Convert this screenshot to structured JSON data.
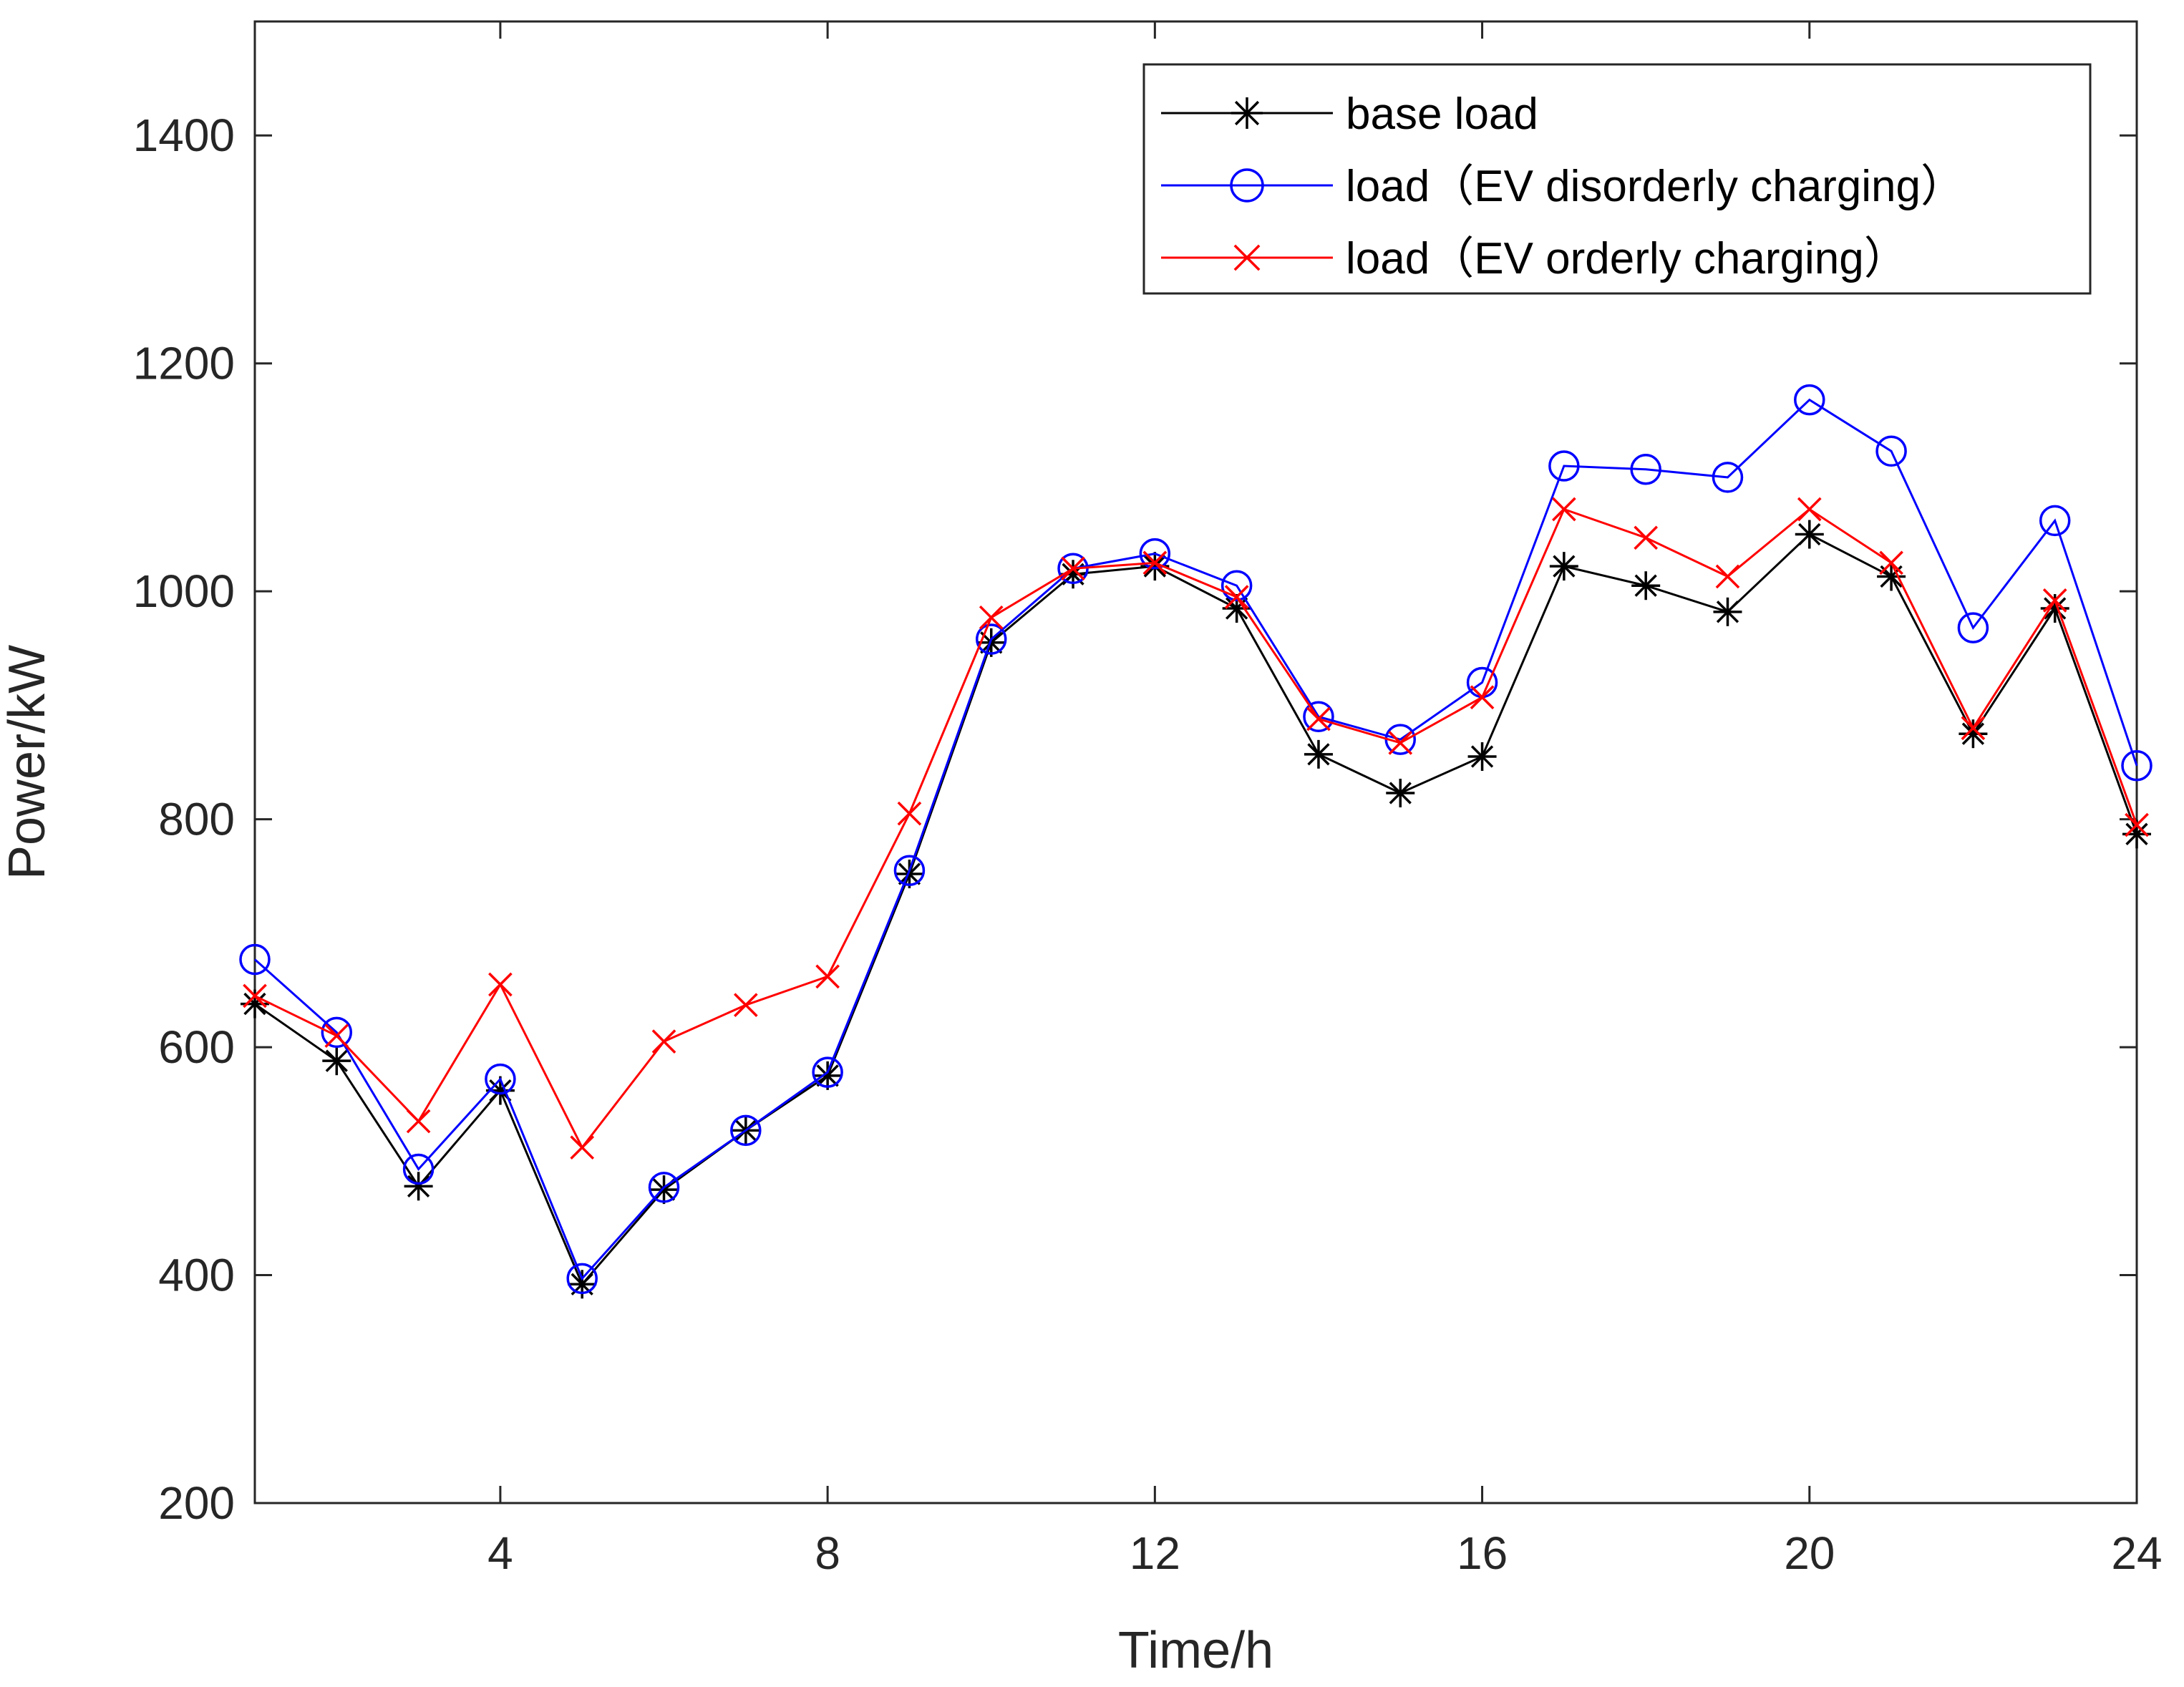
{
  "chart_data": {
    "type": "line",
    "title": "",
    "xlabel": "Time/h",
    "ylabel": "Power/kW",
    "xlim": [
      1,
      24
    ],
    "ylim": [
      200,
      1500
    ],
    "xticks": [
      4,
      8,
      12,
      16,
      20,
      24
    ],
    "yticks": [
      200,
      400,
      600,
      800,
      1000,
      1200,
      1400
    ],
    "grid": false,
    "legend_position": "top-right",
    "x": [
      1,
      2,
      3,
      4,
      5,
      6,
      7,
      8,
      9,
      10,
      11,
      12,
      13,
      14,
      15,
      16,
      17,
      18,
      19,
      20,
      21,
      22,
      23,
      24
    ],
    "series": [
      {
        "name": "base load",
        "color": "#000000",
        "marker": "asterisk",
        "values": [
          638,
          588,
          478,
          562,
          392,
          475,
          527,
          575,
          752,
          955,
          1015,
          1022,
          985,
          857,
          823,
          855,
          1022,
          1005,
          982,
          1050,
          1013,
          875,
          985,
          787
        ]
      },
      {
        "name": "load（EV disorderly charging）",
        "color": "#0000ff",
        "marker": "circle",
        "values": [
          677,
          613,
          493,
          572,
          397,
          477,
          527,
          578,
          755,
          958,
          1020,
          1033,
          1005,
          890,
          870,
          920,
          1110,
          1107,
          1100,
          1168,
          1123,
          968,
          1062,
          847
        ]
      },
      {
        "name": "load（EV orderly charging）",
        "color": "#ff0000",
        "marker": "x",
        "values": [
          645,
          610,
          535,
          655,
          512,
          605,
          637,
          662,
          805,
          977,
          1020,
          1025,
          995,
          888,
          867,
          907,
          1072,
          1047,
          1013,
          1072,
          1025,
          880,
          992,
          795
        ]
      }
    ]
  }
}
